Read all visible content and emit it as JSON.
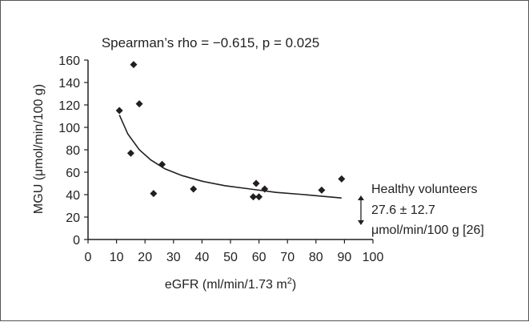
{
  "chart_data": {
    "type": "scatter",
    "title": "Spearman’s rho = −0.615, p = 0.025",
    "xlabel": "eGFR (ml/min/1.73 m",
    "xlabel_sup": "2",
    "xlabel_end": ")",
    "ylabel": "MGU (μmol/min/100 g)",
    "xlim": [
      0,
      100
    ],
    "ylim": [
      0,
      160
    ],
    "xticks": [
      "0",
      "10",
      "20",
      "30",
      "40",
      "50",
      "60",
      "70",
      "80",
      "90",
      "100"
    ],
    "yticks": [
      "0",
      "20",
      "40",
      "60",
      "80",
      "100",
      "120",
      "140",
      "160"
    ],
    "grid": false,
    "marker": "diamond",
    "marker_color": "#231f20",
    "series": [
      {
        "points": [
          {
            "x": 11,
            "y": 115
          },
          {
            "x": 15,
            "y": 77
          },
          {
            "x": 16,
            "y": 156
          },
          {
            "x": 18,
            "y": 121
          },
          {
            "x": 23,
            "y": 41
          },
          {
            "x": 26,
            "y": 67
          },
          {
            "x": 37,
            "y": 45
          },
          {
            "x": 58,
            "y": 38
          },
          {
            "x": 59,
            "y": 50
          },
          {
            "x": 60,
            "y": 38
          },
          {
            "x": 62,
            "y": 45
          },
          {
            "x": 82,
            "y": 44
          },
          {
            "x": 89,
            "y": 54
          }
        ]
      }
    ],
    "trendline": {
      "type": "power",
      "points": [
        {
          "x": 11,
          "y": 111
        },
        {
          "x": 14,
          "y": 94
        },
        {
          "x": 18,
          "y": 80
        },
        {
          "x": 22,
          "y": 71
        },
        {
          "x": 27,
          "y": 63
        },
        {
          "x": 33,
          "y": 57
        },
        {
          "x": 40,
          "y": 52
        },
        {
          "x": 48,
          "y": 48
        },
        {
          "x": 57,
          "y": 45
        },
        {
          "x": 66,
          "y": 42
        },
        {
          "x": 76,
          "y": 40
        },
        {
          "x": 89,
          "y": 37
        }
      ]
    },
    "annotation": {
      "lines": [
        "Healthy volunteers",
        "27.6 ± 12.7",
        "μmol/min/100 g [26]"
      ],
      "range_mean": 27.6,
      "range_sd": 12.7
    }
  }
}
